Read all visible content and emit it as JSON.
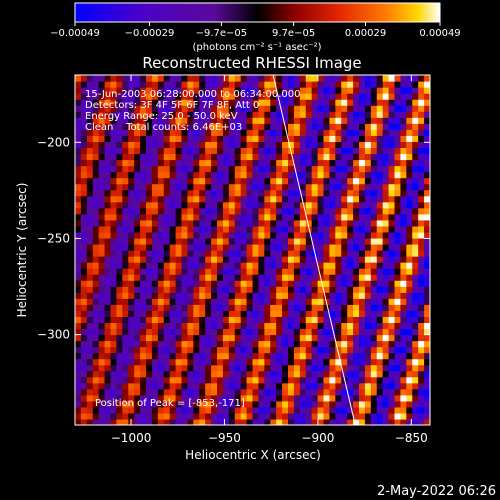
{
  "chart_data": {
    "type": "heatmap",
    "title": "Reconstructed RHESSI Image",
    "xlabel": "Heliocentric X (arcsec)",
    "ylabel": "Heliocentric Y (arcsec)",
    "xlim": [
      -1030,
      -840
    ],
    "ylim": [
      -347,
      -165
    ],
    "x_ticks": [
      -1000,
      -950,
      -900,
      -850
    ],
    "y_ticks": [
      -200,
      -250,
      -300
    ],
    "x_tick_labels": [
      "−1000",
      "−950",
      "−900",
      "−850"
    ],
    "y_tick_labels": [
      "−200",
      "−250",
      "−300"
    ],
    "colorbar": {
      "range": [
        -0.00049,
        0.00049
      ],
      "ticks": [
        -0.00049,
        -0.00029,
        -9.7e-05,
        9.7e-05,
        0.00029,
        0.00049
      ],
      "tick_labels": [
        "−0.00049",
        "−0.00029",
        "−9.7e−05",
        "9.7e−05",
        "0.00029",
        "0.00049"
      ],
      "unit_label": "(photons cm⁻² s⁻¹ asec⁻²)",
      "colors": [
        "#0000ff",
        "#4b00c8",
        "#6a0dad",
        "#000000",
        "#8b0000",
        "#e32400",
        "#ff7a00",
        "#ffd700",
        "#ffffff"
      ]
    },
    "annotations": [
      "15-Jun-2003 06:28:00.000 to 06:34:00.000",
      "Detectors: 3F 4F 5F 6F 7F 8F, Att 0",
      "Energy Range: 25.0 - 50.0 keV",
      "Clean    Total counts: 6.46E+03"
    ],
    "peak_label": "Position of Peak = [-853,-171]",
    "peak": [
      -853,
      -171
    ],
    "limb_line": [
      [
        -924,
        -165
      ],
      [
        -880,
        -347
      ]
    ],
    "fringe_pattern": {
      "stripe_slope_x_per_y": -0.33,
      "period_arcsec": 21,
      "amplitude_max": 0.00049
    }
  },
  "footer_timestamp": "2-May-2022 06:26"
}
